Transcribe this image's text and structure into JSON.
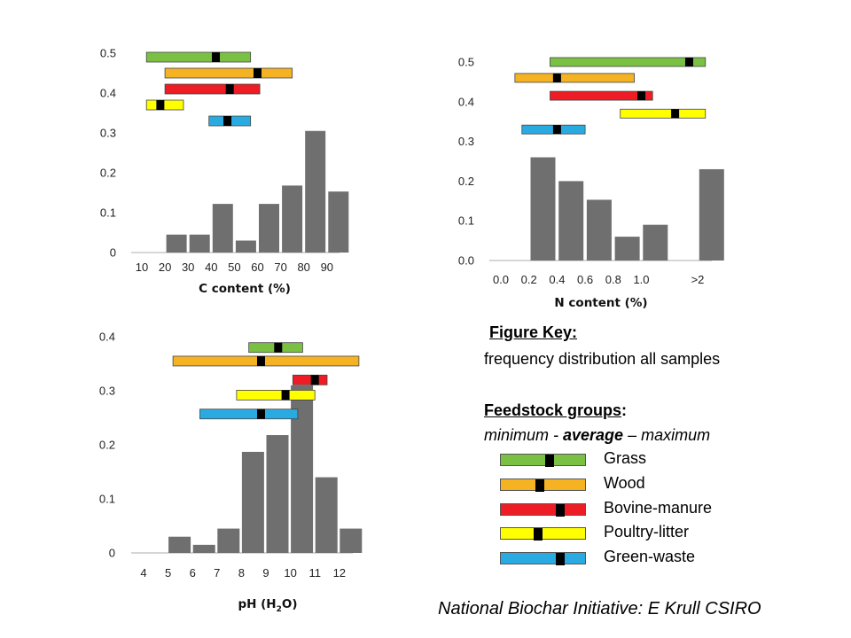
{
  "colors": {
    "bar": "#6f6f6f",
    "axis": "#bdbdbd",
    "Grass": "#7ac143",
    "Wood": "#f5b222",
    "Bovine-manure": "#ee1c24",
    "Poultry-litter": "#ffff00",
    "Green-waste": "#29abe2",
    "marker": "#000000"
  },
  "chart_data": [
    {
      "type": "bar",
      "id": "carbon",
      "xlabel": "C content (%)",
      "categories": [
        "10",
        "20",
        "30",
        "40",
        "50",
        "60",
        "70",
        "80",
        "90"
      ],
      "values": [
        0,
        0.045,
        0.045,
        0.122,
        0.03,
        0.122,
        0.168,
        0.305,
        0.153
      ],
      "yticks": [
        "0",
        "0.1",
        "0.2",
        "0.3",
        "0.4",
        "0.5"
      ],
      "ylim": [
        0,
        0.5
      ],
      "ranges": [
        {
          "name": "Grass",
          "min": 12,
          "avg": 42,
          "max": 57
        },
        {
          "name": "Wood",
          "min": 20,
          "avg": 60,
          "max": 75
        },
        {
          "name": "Bovine-manure",
          "min": 20,
          "avg": 48,
          "max": 61
        },
        {
          "name": "Poultry-litter",
          "min": 12,
          "avg": 18,
          "max": 28
        },
        {
          "name": "Green-waste",
          "min": 39,
          "avg": 47,
          "max": 57
        }
      ],
      "range_baselines": [
        0.49,
        0.45,
        0.41,
        0.37,
        0.33
      ]
    },
    {
      "type": "bar",
      "id": "nitrogen",
      "xlabel": "N content (%)",
      "categories": [
        "0.0",
        "0.2",
        "0.4",
        "0.6",
        "0.8",
        "1.0",
        "",
        ">2"
      ],
      "values": [
        0,
        0.26,
        0.2,
        0.153,
        0.06,
        0.09,
        0,
        0.23
      ],
      "yticks": [
        "0.0",
        "0.1",
        "0.2",
        "0.3",
        "0.4",
        "0.5"
      ],
      "ylim": [
        0,
        0.5
      ],
      "ranges": [
        {
          "name": "Grass",
          "min": 0.35,
          "avg": 1.85,
          "max": 2.4
        },
        {
          "name": "Wood",
          "min": 0.1,
          "avg": 0.4,
          "max": 0.95
        },
        {
          "name": "Bovine-manure",
          "min": 0.35,
          "avg": 1.0,
          "max": 1.2
        },
        {
          "name": "Poultry-litter",
          "min": 0.85,
          "avg": 1.6,
          "max": 2.4
        },
        {
          "name": "Green-waste",
          "min": 0.15,
          "avg": 0.4,
          "max": 0.6
        }
      ],
      "range_baselines": [
        0.5,
        0.46,
        0.415,
        0.37,
        0.33
      ]
    },
    {
      "type": "bar",
      "id": "ph",
      "xlabel": "pH (H",
      "xlabel_sub": "2",
      "xlabel_end": "O)",
      "categories": [
        "4",
        "5",
        "6",
        "7",
        "8",
        "9",
        "10",
        "11",
        "12"
      ],
      "values": [
        0,
        0.03,
        0.015,
        0.045,
        0.187,
        0.218,
        0.31,
        0.14,
        0.045
      ],
      "yticks": [
        "0",
        "0.1",
        "0.2",
        "0.3",
        "0.4"
      ],
      "ylim": [
        0,
        0.4
      ],
      "ranges": [
        {
          "name": "Grass",
          "min": 8.3,
          "avg": 9.5,
          "max": 10.5
        },
        {
          "name": "Wood",
          "min": 5.2,
          "avg": 8.8,
          "max": 12.8
        },
        {
          "name": "Bovine-manure",
          "min": 10.1,
          "avg": 11.0,
          "max": 11.5
        },
        {
          "name": "Poultry-litter",
          "min": 7.8,
          "avg": 9.8,
          "max": 11.0
        },
        {
          "name": "Green-waste",
          "min": 6.3,
          "avg": 8.8,
          "max": 10.3
        }
      ],
      "range_baselines": [
        0.38,
        0.355,
        0.32,
        0.292,
        0.257
      ]
    }
  ],
  "key": {
    "title": "Figure Key:",
    "distribution": "frequency distribution all samples",
    "groups_heading": "Feedstock groups",
    "groups_colon": ":",
    "mam_pre": "minimum - ",
    "mam_avg": "average",
    "mam_post": " – maximum",
    "legend": [
      {
        "name": "Grass",
        "color": "#7ac143",
        "marker_pos": 0.57
      },
      {
        "name": "Wood",
        "color": "#f5b222",
        "marker_pos": 0.45
      },
      {
        "name": "Bovine-manure",
        "color": "#ee1c24",
        "marker_pos": 0.69
      },
      {
        "name": "Poultry-litter",
        "color": "#ffff00",
        "marker_pos": 0.43
      },
      {
        "name": "Green-waste",
        "color": "#29abe2",
        "marker_pos": 0.69
      }
    ]
  },
  "credit": "National Biochar Initiative: E Krull CSIRO"
}
